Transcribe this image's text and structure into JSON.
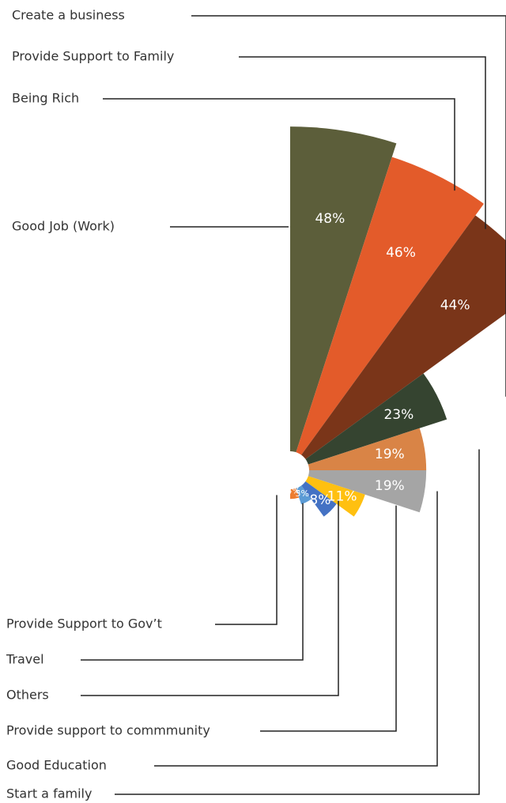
{
  "chart_data": {
    "type": "pie",
    "variant": "polar-area",
    "title": "",
    "categories": [
      "Good Job (Work)",
      "Being Rich",
      "Provide Support to Family",
      "Create a business",
      "Start a family",
      "Good Education",
      "Provide support to commmunity",
      "Others",
      "Travel",
      "Provide Support to Gov’t"
    ],
    "values": [
      48,
      46,
      44,
      23,
      19,
      19,
      11,
      8,
      5,
      4
    ],
    "value_labels": [
      "48%",
      "46%",
      "44%",
      "23%",
      "19%",
      "19%",
      "11%",
      "8%",
      "5%",
      "4%"
    ],
    "colors": [
      "#5C5E3A",
      "#E35B2A",
      "#7A3519",
      "#354430",
      "#D98446",
      "#A5A5A5",
      "#FFC010",
      "#4472C4",
      "#5B9BD5",
      "#ED7D31"
    ],
    "legend": "none",
    "grid": false
  }
}
